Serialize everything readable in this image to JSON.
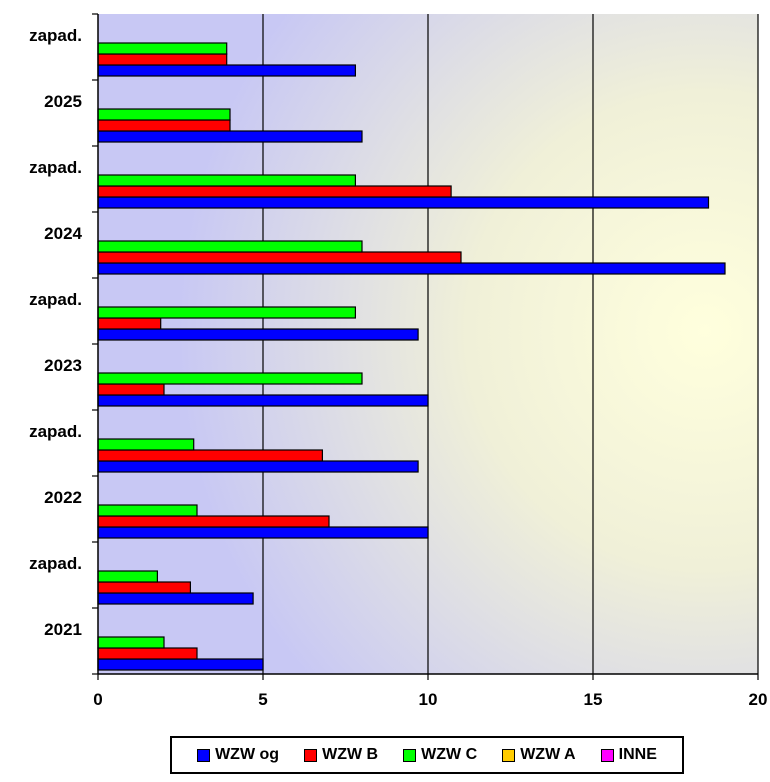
{
  "chart_data": {
    "type": "bar",
    "orientation": "horizontal",
    "title": "",
    "xlabel": "",
    "ylabel": "",
    "xlim": [
      0,
      20
    ],
    "x_ticks": [
      "0",
      "5",
      "10",
      "15",
      "20"
    ],
    "grid": true,
    "legend_position": "bottom",
    "categories": [
      "2021",
      "zapad.",
      "2022",
      "zapad.",
      "2023",
      "zapad.",
      "2024",
      "zapad.",
      "2025",
      "zapad."
    ],
    "series": [
      {
        "name": "WZW og",
        "color": "#0000ff",
        "values": [
          5,
          4.7,
          10,
          9.7,
          10,
          9.7,
          19,
          18.5,
          8,
          7.8
        ]
      },
      {
        "name": "WZW B",
        "color": "#ff0000",
        "values": [
          3,
          2.8,
          7,
          6.8,
          2,
          1.9,
          11,
          10.7,
          4,
          3.9
        ]
      },
      {
        "name": "WZW C",
        "color": "#00ff00",
        "values": [
          2,
          1.8,
          3,
          2.9,
          8,
          7.8,
          8,
          7.8,
          4,
          3.9
        ]
      },
      {
        "name": "WZW A",
        "color": "#ffcc00",
        "values": [
          0,
          0,
          0,
          0,
          0,
          0,
          0,
          0,
          0,
          0
        ]
      },
      {
        "name": "INNE",
        "color": "#ff00ff",
        "values": [
          0,
          0,
          0,
          0,
          0,
          0,
          0,
          0,
          0,
          0
        ]
      }
    ]
  }
}
